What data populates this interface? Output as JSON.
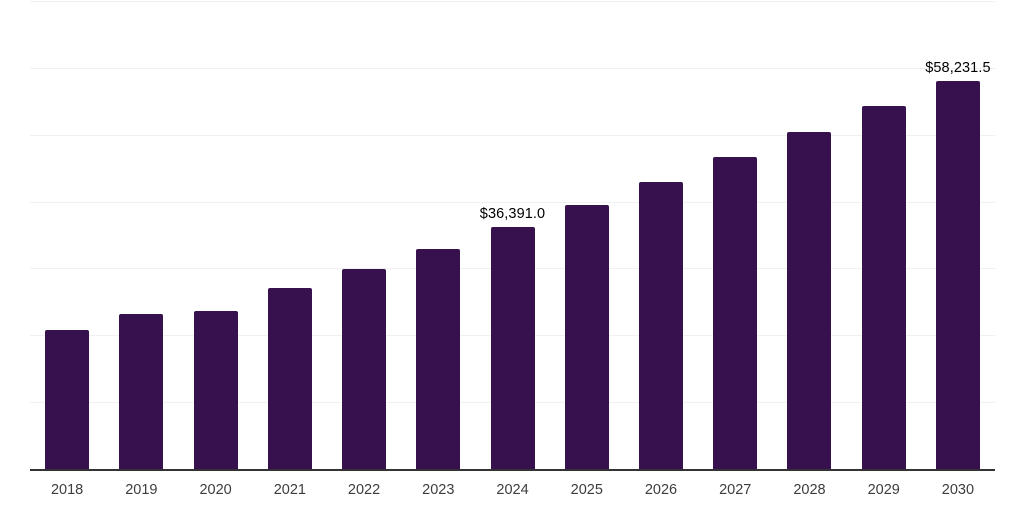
{
  "chart_data": {
    "type": "bar",
    "title": "",
    "xlabel": "",
    "ylabel": "",
    "categories": [
      "2018",
      "2019",
      "2020",
      "2021",
      "2022",
      "2023",
      "2024",
      "2025",
      "2026",
      "2027",
      "2028",
      "2029",
      "2030"
    ],
    "values": [
      21000,
      23400,
      23750,
      27250,
      30100,
      33100,
      36391.0,
      39700,
      43100,
      46800,
      50500,
      54500,
      58231.5
    ],
    "labeled_points": [
      {
        "category": "2024",
        "label": "$36,391.0",
        "value": 36391.0
      },
      {
        "category": "2030",
        "label": "$58,231.5",
        "value": 58231.5
      }
    ],
    "ylim": [
      0,
      70000
    ],
    "grid_interval": 10000,
    "grid": true,
    "legend": false,
    "colors": {
      "bar": "#36114d",
      "gridline": "#f0f0f0",
      "axis_line": "#333333",
      "value_label": "#000000",
      "tick_label": "#3d3d3d",
      "background": "#ffffff"
    }
  }
}
